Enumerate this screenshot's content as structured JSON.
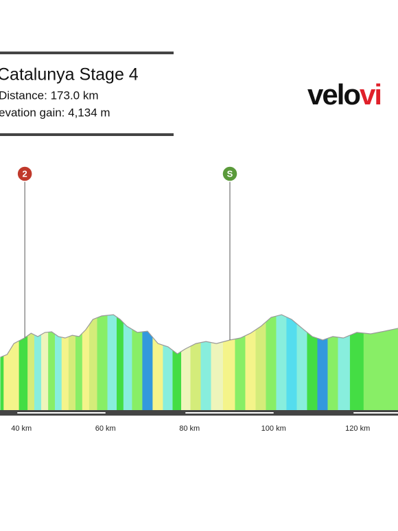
{
  "chart_data": {
    "type": "area",
    "title": "Catalunya Stage 4",
    "distance": "Distance: 173.0 km",
    "elevation_gain": "evation gain: 4,134 m",
    "logo": {
      "part1": "velo",
      "part2": "vi"
    },
    "x": [
      35,
      36.6,
      38.2,
      40.7,
      42.3,
      43.9,
      45.6,
      47.2,
      48.8,
      50.4,
      52.1,
      53.7,
      55.3,
      57.0,
      59.1,
      61.9,
      63.5,
      65.1,
      67.6,
      70.0,
      72.5,
      74.9,
      77.1,
      79.0,
      81.5,
      83.9,
      86.4,
      89.6,
      92.1,
      94.5,
      97.0,
      99.4,
      101.9,
      104.3,
      106.8,
      109.2,
      111.7,
      114.1,
      116.6,
      119.8,
      123.1,
      126.4,
      129.6
    ],
    "values": [
      257,
      270,
      323,
      350,
      373,
      357,
      377,
      380,
      357,
      350,
      363,
      357,
      390,
      440,
      457,
      463,
      440,
      407,
      377,
      383,
      323,
      307,
      273,
      297,
      323,
      333,
      323,
      340,
      350,
      373,
      407,
      450,
      463,
      440,
      397,
      357,
      340,
      357,
      350,
      377,
      370,
      383,
      397
    ],
    "colors": [
      "#44dd44",
      "#f4f48a",
      "#f4f48a",
      "#44dd44",
      "#d4ec7a",
      "#88eedd",
      "#eef5bb",
      "#88ee66",
      "#88eedd",
      "#f4f48a",
      "#d4ec7a",
      "#88ee66",
      "#f4f48a",
      "#d4ec7a",
      "#88ee66",
      "#88eedd",
      "#44dd44",
      "#88eedd",
      "#88ee66",
      "#3399dd",
      "#f4f48a",
      "#88eedd",
      "#44dd44",
      "#eef5bb",
      "#d4ec7a",
      "#88eedd",
      "#eef5bb",
      "#f4f48a",
      "#88ee66",
      "#f4f48a",
      "#d4ec7a",
      "#88ee66",
      "#88eedd",
      "#55ddee",
      "#88eedd",
      "#44dd44",
      "#3399dd",
      "#88ee66",
      "#88eedd",
      "#44dd44",
      "#88ee66",
      "#88ee66",
      "#88ee66"
    ],
    "xlim": [
      34.9,
      129.6
    ],
    "ylim": [
      0,
      1000
    ],
    "xticks": [
      {
        "value": 40,
        "label": "40 km"
      },
      {
        "value": 60,
        "label": "60 km"
      },
      {
        "value": 80,
        "label": "80 km"
      },
      {
        "value": 100,
        "label": "100 km"
      },
      {
        "value": 120,
        "label": "120 km"
      }
    ],
    "markers": [
      {
        "label": "2",
        "x": 40.8,
        "color": "#c0392b"
      },
      {
        "label": "S",
        "x": 89.6,
        "color": "#5a9a3a"
      }
    ]
  }
}
